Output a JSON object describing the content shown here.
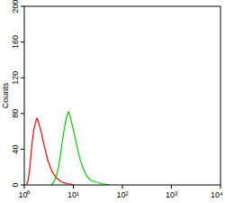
{
  "chart_data": {
    "type": "line",
    "y_label": "Counts",
    "log": "x",
    "xlim": [
      1,
      10000
    ],
    "xticks": [
      {
        "value": 1,
        "label": "10⁰"
      },
      {
        "value": 10,
        "label": "10¹"
      },
      {
        "value": 100,
        "label": "10²"
      },
      {
        "value": 1000,
        "label": "10³"
      },
      {
        "value": 10000,
        "label": "10⁴"
      }
    ],
    "ylim": [
      0,
      200
    ],
    "yticks": [
      0,
      40,
      80,
      120,
      160,
      200
    ],
    "grid": false,
    "series": [
      {
        "color": "#ff0000",
        "x": [
          1.1,
          1.2,
          1.3,
          1.4,
          1.5,
          1.6,
          1.7,
          1.8,
          1.9,
          2.0,
          2.2,
          2.4,
          2.6,
          2.8,
          3.0,
          3.3,
          3.6,
          4.0,
          4.5,
          5,
          5.5,
          6,
          7,
          8,
          9,
          10
        ],
        "values": [
          0,
          5,
          20,
          40,
          55,
          65,
          70,
          75,
          72,
          68,
          60,
          50,
          42,
          35,
          28,
          22,
          16,
          12,
          8,
          6,
          4,
          3,
          2,
          1,
          1,
          0
        ]
      },
      {
        "color": "#00cc00",
        "x": [
          3.5,
          4,
          4.5,
          5,
          5.5,
          6,
          6.5,
          7,
          7.5,
          8,
          8.5,
          9,
          10,
          11,
          12,
          13,
          14,
          16,
          18,
          20,
          23,
          26,
          30,
          35,
          40,
          45,
          50,
          55
        ],
        "values": [
          0,
          3,
          10,
          20,
          35,
          50,
          62,
          72,
          78,
          82,
          78,
          72,
          62,
          52,
          42,
          34,
          27,
          18,
          12,
          8,
          5,
          4,
          3,
          2,
          1,
          1,
          0.5,
          0
        ]
      }
    ]
  }
}
